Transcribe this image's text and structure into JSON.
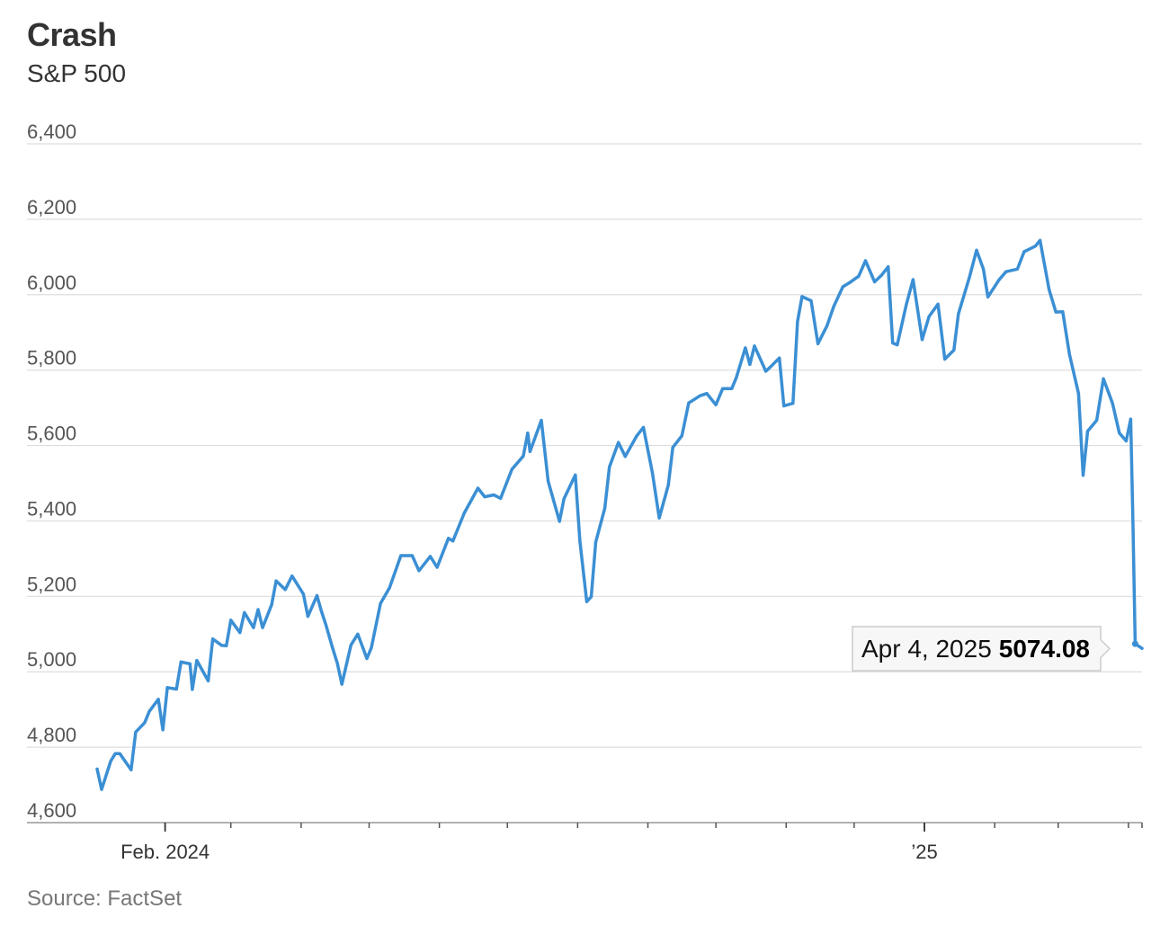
{
  "title": "Crash",
  "subtitle": "S&P 500",
  "source": "Source: FactSet",
  "chart_data": {
    "type": "line",
    "title": "Crash",
    "subtitle": "S&P 500",
    "xlabel": "",
    "ylabel": "",
    "ylim": [
      4600,
      6400
    ],
    "yticks": [
      4600,
      4800,
      5000,
      5200,
      5400,
      5600,
      5800,
      6000,
      6200,
      6400
    ],
    "ytick_labels": [
      "4,600",
      "4,800",
      "5,000",
      "5,200",
      "5,400",
      "5,600",
      "5,800",
      "6,000",
      "6,200",
      "6,400"
    ],
    "xlim": [
      "2024-01-02",
      "2025-04-07"
    ],
    "xtick_labels": [
      {
        "date": "2024-02-01",
        "label": "Feb. 2024"
      },
      {
        "date": "2025-01-01",
        "label": "’25"
      }
    ],
    "month_ticks": [
      "2024-02-01",
      "2024-03-01",
      "2024-04-01",
      "2024-05-01",
      "2024-06-01",
      "2024-07-01",
      "2024-08-01",
      "2024-09-01",
      "2024-10-01",
      "2024-11-01",
      "2024-12-01",
      "2025-01-01",
      "2025-02-01",
      "2025-03-01",
      "2025-04-01"
    ],
    "grid": true,
    "line_color": "#3b8fd4",
    "x": [
      "2024-01-02",
      "2024-01-04",
      "2024-01-08",
      "2024-01-10",
      "2024-01-12",
      "2024-01-17",
      "2024-01-19",
      "2024-01-23",
      "2024-01-25",
      "2024-01-29",
      "2024-01-31",
      "2024-02-02",
      "2024-02-06",
      "2024-02-08",
      "2024-02-12",
      "2024-02-13",
      "2024-02-15",
      "2024-02-20",
      "2024-02-22",
      "2024-02-26",
      "2024-02-28",
      "2024-03-01",
      "2024-03-05",
      "2024-03-07",
      "2024-03-11",
      "2024-03-13",
      "2024-03-15",
      "2024-03-19",
      "2024-03-21",
      "2024-03-25",
      "2024-03-28",
      "2024-04-02",
      "2024-04-04",
      "2024-04-08",
      "2024-04-10",
      "2024-04-12",
      "2024-04-15",
      "2024-04-17",
      "2024-04-19",
      "2024-04-23",
      "2024-04-26",
      "2024-04-30",
      "2024-05-02",
      "2024-05-06",
      "2024-05-10",
      "2024-05-15",
      "2024-05-20",
      "2024-05-23",
      "2024-05-28",
      "2024-05-31",
      "2024-06-05",
      "2024-06-07",
      "2024-06-12",
      "2024-06-18",
      "2024-06-21",
      "2024-06-25",
      "2024-06-28",
      "2024-07-03",
      "2024-07-08",
      "2024-07-10",
      "2024-07-11",
      "2024-07-16",
      "2024-07-19",
      "2024-07-24",
      "2024-07-26",
      "2024-07-31",
      "2024-08-02",
      "2024-08-05",
      "2024-08-07",
      "2024-08-09",
      "2024-08-13",
      "2024-08-15",
      "2024-08-19",
      "2024-08-22",
      "2024-08-27",
      "2024-08-30",
      "2024-09-03",
      "2024-09-06",
      "2024-09-10",
      "2024-09-12",
      "2024-09-16",
      "2024-09-19",
      "2024-09-24",
      "2024-09-27",
      "2024-10-01",
      "2024-10-04",
      "2024-10-08",
      "2024-10-10",
      "2024-10-14",
      "2024-10-16",
      "2024-10-18",
      "2024-10-23",
      "2024-10-25",
      "2024-10-29",
      "2024-10-31",
      "2024-11-04",
      "2024-11-06",
      "2024-11-08",
      "2024-11-12",
      "2024-11-15",
      "2024-11-19",
      "2024-11-22",
      "2024-11-26",
      "2024-11-29",
      "2024-12-03",
      "2024-12-06",
      "2024-12-10",
      "2024-12-13",
      "2024-12-16",
      "2024-12-18",
      "2024-12-20",
      "2024-12-24",
      "2024-12-27",
      "2024-12-31",
      "2025-01-03",
      "2025-01-07",
      "2025-01-10",
      "2025-01-14",
      "2025-01-16",
      "2025-01-21",
      "2025-01-24",
      "2025-01-27",
      "2025-01-29",
      "2025-02-03",
      "2025-02-06",
      "2025-02-11",
      "2025-02-14",
      "2025-02-19",
      "2025-02-21",
      "2025-02-25",
      "2025-02-28",
      "2025-03-03",
      "2025-03-06",
      "2025-03-10",
      "2025-03-12",
      "2025-03-14",
      "2025-03-18",
      "2025-03-21",
      "2025-03-25",
      "2025-03-28",
      "2025-03-31",
      "2025-04-02",
      "2025-04-03",
      "2025-04-04",
      "2025-04-07"
    ],
    "series": [
      {
        "values": [
          4742,
          4688,
          4763,
          4783,
          4783,
          4740,
          4840,
          4865,
          4895,
          4927,
          4846,
          4958,
          4954,
          5026,
          5021,
          4953,
          5030,
          4976,
          5087,
          5070,
          5069,
          5137,
          5104,
          5157,
          5117,
          5165,
          5117,
          5178,
          5241,
          5218,
          5254,
          5206,
          5147,
          5202,
          5160,
          5123,
          5061,
          5022,
          4967,
          5071,
          5100,
          5035,
          5064,
          5181,
          5223,
          5308,
          5308,
          5268,
          5306,
          5277,
          5354,
          5347,
          5421,
          5487,
          5464,
          5469,
          5460,
          5537,
          5572,
          5633,
          5584,
          5667,
          5505,
          5399,
          5459,
          5522,
          5346,
          5186,
          5199,
          5344,
          5434,
          5543,
          5608,
          5571,
          5625,
          5648,
          5528,
          5408,
          5495,
          5595,
          5626,
          5713,
          5732,
          5738,
          5708,
          5751,
          5751,
          5780,
          5859,
          5815,
          5864,
          5797,
          5808,
          5832,
          5705,
          5712,
          5929,
          5995,
          5984,
          5870,
          5917,
          5969,
          6021,
          6032,
          6049,
          6090,
          6034,
          6051,
          6074,
          5872,
          5867,
          5974,
          6040,
          5881,
          5942,
          5975,
          5829,
          5853,
          5949,
          6049,
          6118,
          6068,
          5994,
          6040,
          6061,
          6068,
          6114,
          6129,
          6144,
          6013,
          5954,
          5955,
          5842,
          5738,
          5521,
          5638,
          5667,
          5777,
          5712,
          5633,
          5612,
          5670,
          5396,
          5074,
          5062
        ]
      }
    ],
    "annotations": [
      {
        "label": "Apr 4, 2025",
        "value": "5074.08",
        "date": "2025-04-04"
      }
    ]
  }
}
